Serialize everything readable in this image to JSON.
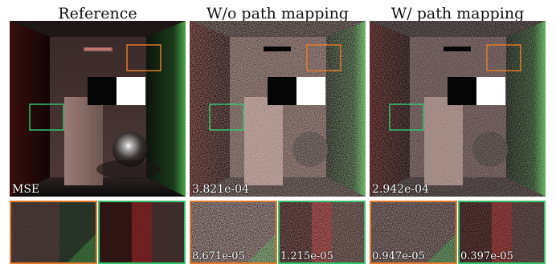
{
  "columns": [
    {
      "title": "Reference",
      "mse_label": "MSE",
      "crop_orange_mse": "",
      "crop_green_mse": ""
    },
    {
      "title": "W/o path mapping",
      "mse_label": "3.821e-04",
      "crop_orange_mse": "8.671e-05",
      "crop_green_mse": "1.215e-05"
    },
    {
      "title": "W/ path mapping",
      "mse_label": "2.942e-04",
      "crop_orange_mse": "0.947e-05",
      "crop_green_mse": "0.397e-05"
    }
  ],
  "colors": {
    "orange_box": "#e07a2c",
    "green_box": "#36c26e"
  }
}
